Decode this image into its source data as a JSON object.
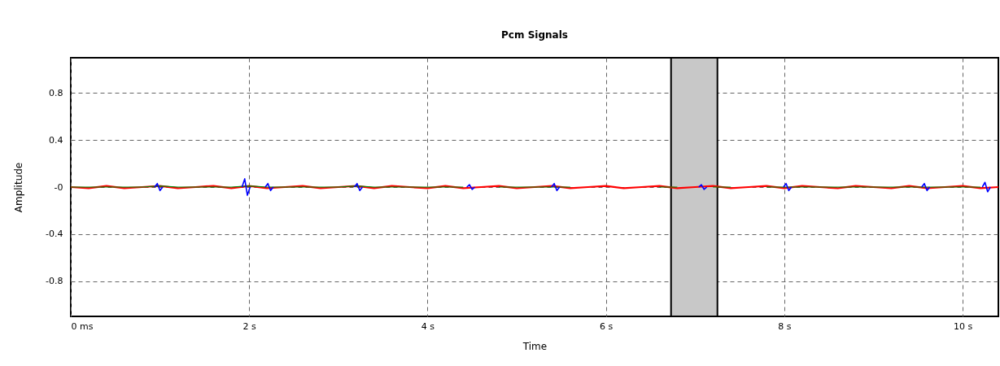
{
  "chart_data": {
    "type": "line",
    "title": "Pcm Signals",
    "xlabel": "Time",
    "ylabel": "Amplitude",
    "x": [
      0,
      0.2,
      0.4,
      0.6,
      0.8,
      1,
      1.2,
      1.4,
      1.6,
      1.8,
      2,
      2.2,
      2.4,
      2.6,
      2.8,
      3,
      3.2,
      3.4,
      3.6,
      3.8,
      4,
      4.2,
      4.4,
      4.6,
      4.8,
      5,
      5.2,
      5.4,
      5.6,
      5.8,
      6,
      6.2,
      6.4,
      6.6,
      6.8,
      7,
      7.2,
      7.4,
      7.6,
      7.8,
      8,
      8.2,
      8.4,
      8.6,
      8.8,
      9,
      9.2,
      9.4,
      9.6,
      9.8,
      10,
      10.2,
      10.4
    ],
    "series": [
      {
        "color": "#ff0000",
        "values": [
          0,
          -0.01,
          0.01,
          -0.01,
          0,
          0.01,
          -0.01,
          0,
          0.01,
          -0.01,
          0.01,
          -0.01,
          0,
          0.01,
          -0.01,
          0,
          0.01,
          -0.01,
          0.01,
          0,
          -0.01,
          0.01,
          -0.01,
          0,
          0.01,
          -0.01,
          0,
          0.01,
          -0.01,
          0,
          0.01,
          -0.01,
          0,
          0.01,
          -0.01,
          0,
          0.01,
          -0.01,
          0,
          0.01,
          -0.01,
          0.01,
          0,
          -0.01,
          0.01,
          0,
          -0.01,
          0.01,
          -0.01,
          0,
          0.01,
          -0.01,
          0
        ]
      },
      {
        "color": "#008000",
        "values": [
          0,
          0,
          0,
          0,
          0,
          0.01,
          0,
          0,
          0,
          0,
          0.01,
          0,
          0,
          0,
          0,
          0,
          0.01,
          0,
          0,
          0,
          0,
          0,
          0,
          null,
          0,
          0,
          0,
          0,
          0,
          null,
          null,
          null,
          null,
          0,
          0,
          null,
          0,
          0,
          null,
          0,
          0,
          0,
          0,
          0,
          0,
          0,
          0,
          0,
          0,
          0,
          0,
          0,
          null
        ]
      },
      {
        "color": "#0000ff",
        "x": [
          0.94,
          0.97,
          1.0,
          1.03,
          1.5,
          1.92,
          1.95,
          1.98,
          2.01,
          2.1,
          2.18,
          2.21,
          2.24,
          2.27,
          3.0,
          3.18,
          3.21,
          3.24,
          3.27,
          4.0,
          4.44,
          4.47,
          4.5,
          4.53,
          5.0,
          5.39,
          5.42,
          5.45,
          5.48,
          6.5,
          7.04,
          7.07,
          7.1,
          7.13,
          7.5,
          7.99,
          8.02,
          8.05,
          8.08,
          9.0,
          9.54,
          9.57,
          9.6,
          9.63,
          10.0,
          10.22,
          10.25,
          10.28,
          10.31
        ],
        "values": [
          0,
          0.03,
          -0.03,
          0,
          null,
          0,
          0.07,
          -0.07,
          0,
          null,
          0,
          0.03,
          -0.03,
          0,
          null,
          0,
          0.03,
          -0.03,
          0,
          null,
          0,
          0.02,
          -0.02,
          0,
          null,
          0,
          0.03,
          -0.03,
          0,
          null,
          0,
          0.02,
          -0.02,
          0,
          null,
          0,
          0.03,
          -0.03,
          0,
          null,
          0,
          0.03,
          -0.03,
          0,
          null,
          0,
          0.04,
          -0.04,
          0
        ]
      }
    ],
    "xlim": [
      0,
      10.4
    ],
    "xticks": [
      {
        "value": 0,
        "label": "0 ms"
      },
      {
        "value": 2,
        "label": "2 s"
      },
      {
        "value": 4,
        "label": "4 s"
      },
      {
        "value": 6,
        "label": "6 s"
      },
      {
        "value": 8,
        "label": "8 s"
      },
      {
        "value": 10,
        "label": "10 s"
      }
    ],
    "ylim": [
      -1.1,
      1.1
    ],
    "yticks": [
      -0.8,
      -0.4,
      {
        "value": 0,
        "label": "-0"
      },
      0.4,
      0.8
    ],
    "bands": [
      {
        "axis": "x",
        "from": 6.73,
        "to": 7.25,
        "color": "#c8c8c8"
      }
    ],
    "grid": true,
    "line_style": "solid"
  }
}
